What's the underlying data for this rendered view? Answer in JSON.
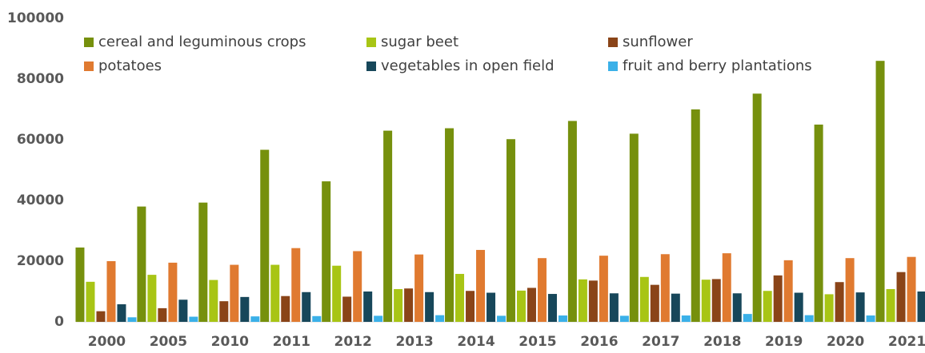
{
  "chart_data": {
    "type": "bar",
    "categories": [
      "2000",
      "2005",
      "2010",
      "2011",
      "2012",
      "2013",
      "2014",
      "2015",
      "2016",
      "2017",
      "2018",
      "2019",
      "2020",
      "2021"
    ],
    "series": [
      {
        "name": "cereal and leguminous crops",
        "color": "#76900d",
        "values": [
          24500,
          38000,
          39300,
          56700,
          46300,
          63000,
          63800,
          60200,
          66200,
          62000,
          70000,
          75200,
          65000,
          86000
        ]
      },
      {
        "name": "sugar beet",
        "color": "#a8c515",
        "values": [
          13200,
          15500,
          13800,
          18800,
          18500,
          10800,
          15800,
          10300,
          14000,
          14800,
          13900,
          10200,
          9100,
          10800
        ]
      },
      {
        "name": "sunflower",
        "color": "#8a4418",
        "values": [
          3500,
          4500,
          6800,
          8500,
          8300,
          11000,
          10200,
          11200,
          13600,
          12200,
          14100,
          15300,
          13100,
          16400
        ]
      },
      {
        "name": "potatoes",
        "color": "#e07a30",
        "values": [
          20000,
          19500,
          18800,
          24300,
          23300,
          22200,
          23700,
          21000,
          21800,
          22300,
          22600,
          20300,
          21000,
          21400
        ]
      },
      {
        "name": "vegetables in open field",
        "color": "#17475a",
        "values": [
          5800,
          7300,
          8200,
          9800,
          10000,
          9800,
          9600,
          9200,
          9400,
          9300,
          9400,
          9600,
          9700,
          10000
        ]
      },
      {
        "name": "fruit and berry plantations",
        "color": "#3ab0e8",
        "values": [
          1500,
          1700,
          1800,
          1900,
          2000,
          2200,
          2000,
          2100,
          2000,
          2100,
          2600,
          2200,
          2100,
          2300
        ]
      }
    ],
    "ylim": [
      0,
      100000
    ],
    "yticks": [
      0,
      20000,
      40000,
      60000,
      80000,
      100000
    ],
    "grid": false,
    "legend": "top"
  }
}
